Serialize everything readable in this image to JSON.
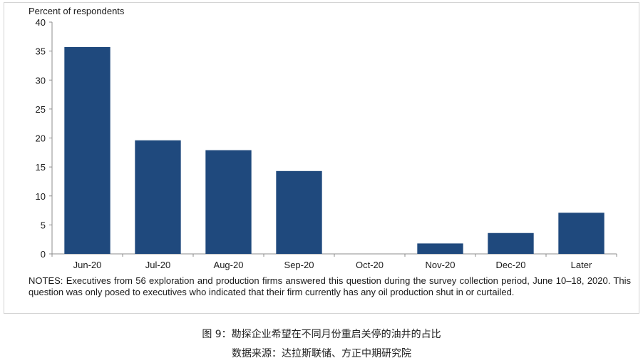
{
  "chart_data": {
    "type": "bar",
    "ylabel": "Percent of respondents",
    "categories": [
      "Jun-20",
      "Jul-20",
      "Aug-20",
      "Sep-20",
      "Oct-20",
      "Nov-20",
      "Dec-20",
      "Later"
    ],
    "values": [
      35.7,
      19.6,
      17.9,
      14.3,
      0,
      1.8,
      3.6,
      7.1
    ],
    "ylim": [
      0,
      40
    ],
    "yticks": [
      "0",
      "5",
      "10",
      "15",
      "20",
      "25",
      "30",
      "35",
      "40"
    ],
    "grid": false,
    "bar_color": "#1f497d",
    "notes": "NOTES: Executives from 56 exploration and production firms answered this question during the survey collection period, June 10–18, 2020. This question was only posed to executives who indicated that their firm currently has any oil production shut in or curtailed."
  },
  "caption": {
    "title": "图 9：勘探企业希望在不同月份重启关停的油井的占比",
    "source": "数据来源：达拉斯联储、方正中期研究院"
  }
}
